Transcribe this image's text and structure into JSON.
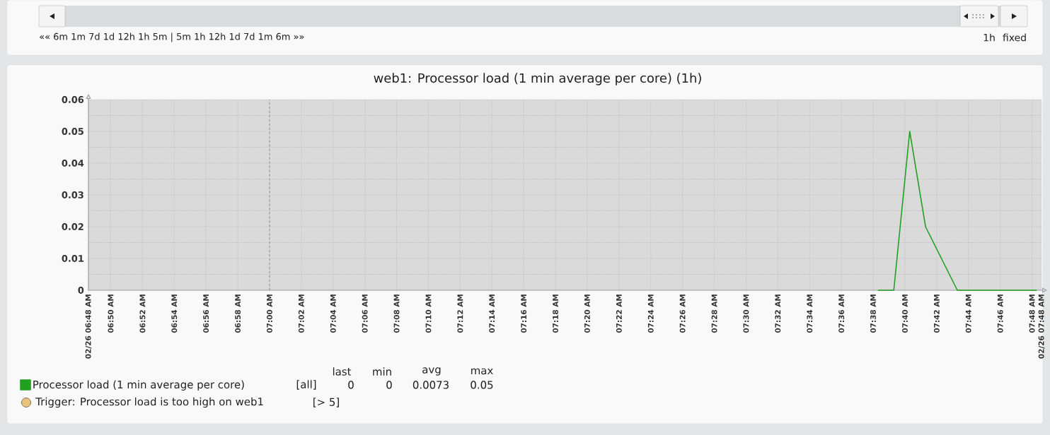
{
  "chart_data": {
    "type": "line",
    "title": "web1: Processor load (1 min average per core) (1h)",
    "x": [
      7.6383,
      7.655,
      7.6717,
      7.6883,
      7.705,
      7.7217,
      7.7383,
      7.755,
      7.7717,
      7.7883,
      7.805
    ],
    "series": [
      {
        "name": "Processor load (1 min average per core)",
        "color": "#22a022",
        "values": [
          0,
          0,
          0.05,
          0.02,
          0.01,
          0,
          0,
          0,
          0,
          0,
          0
        ]
      }
    ],
    "xlim": [
      6.81,
      7.81
    ],
    "ylim": [
      0,
      0.06
    ],
    "xticks": [
      {
        "value": 6.81,
        "label": "02/26 06:48 AM"
      },
      {
        "value": 6.8333,
        "label": "06:50 AM"
      },
      {
        "value": 6.8667,
        "label": "06:52 AM"
      },
      {
        "value": 6.9,
        "label": "06:54 AM"
      },
      {
        "value": 6.9333,
        "label": "06:56 AM"
      },
      {
        "value": 6.9667,
        "label": "06:58 AM"
      },
      {
        "value": 7,
        "label": "07:00 AM"
      },
      {
        "value": 7.0333,
        "label": "07:02 AM"
      },
      {
        "value": 7.0667,
        "label": "07:04 AM"
      },
      {
        "value": 7.1,
        "label": "07:06 AM"
      },
      {
        "value": 7.1333,
        "label": "07:08 AM"
      },
      {
        "value": 7.1667,
        "label": "07:10 AM"
      },
      {
        "value": 7.2,
        "label": "07:12 AM"
      },
      {
        "value": 7.2333,
        "label": "07:14 AM"
      },
      {
        "value": 7.2667,
        "label": "07:16 AM"
      },
      {
        "value": 7.3,
        "label": "07:18 AM"
      },
      {
        "value": 7.3333,
        "label": "07:20 AM"
      },
      {
        "value": 7.3667,
        "label": "07:22 AM"
      },
      {
        "value": 7.4,
        "label": "07:24 AM"
      },
      {
        "value": 7.4333,
        "label": "07:26 AM"
      },
      {
        "value": 7.4667,
        "label": "07:28 AM"
      },
      {
        "value": 7.5,
        "label": "07:30 AM"
      },
      {
        "value": 7.5333,
        "label": "07:32 AM"
      },
      {
        "value": 7.5667,
        "label": "07:34 AM"
      },
      {
        "value": 7.6,
        "label": "07:36 AM"
      },
      {
        "value": 7.6333,
        "label": "07:38 AM"
      },
      {
        "value": 7.6667,
        "label": "07:40 AM"
      },
      {
        "value": 7.7,
        "label": "07:42 AM"
      },
      {
        "value": 7.7333,
        "label": "07:44 AM"
      },
      {
        "value": 7.7667,
        "label": "07:46 AM"
      },
      {
        "value": 7.8,
        "label": "07:48 AM"
      },
      {
        "value": 7.81,
        "label": "02/26 07:48 AM"
      }
    ],
    "yticks": [
      0,
      0.01,
      0.02,
      0.03,
      0.04,
      0.05,
      0.06
    ],
    "grid": true,
    "legend": "bottom left",
    "line_style": "solid",
    "ref_lines": [
      {
        "axis": "x",
        "value": 7,
        "color": "#8c8c8c",
        "line_style": "dashed"
      }
    ],
    "annotations": [
      "«« 6m 1m 7d 1d 12h 1h 5m | 5m 1h 12h 1d 7d 1m 6m »»",
      "1h",
      "fixed",
      "last",
      "min",
      "avg",
      "max",
      "[all]",
      "0",
      "0",
      "0.0073",
      "0.05",
      "Trigger: Processor load is too high on web1",
      "[> 5]"
    ]
  }
}
